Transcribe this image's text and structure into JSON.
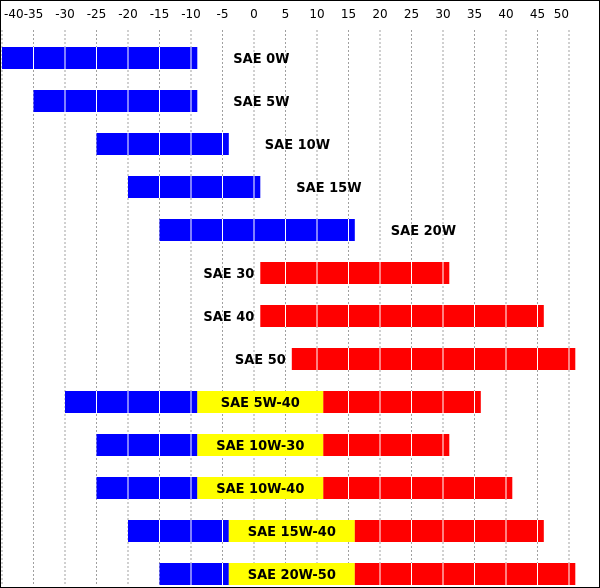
{
  "chart_data": {
    "type": "bar",
    "x_ticks": [
      -40,
      -35,
      -30,
      -25,
      -20,
      -15,
      -10,
      -5,
      0,
      5,
      10,
      15,
      20,
      25,
      30,
      35,
      40,
      45,
      50
    ],
    "xlim": [
      -40,
      50
    ],
    "grid": true,
    "colors": {
      "cold": "#0000ff",
      "mid": "#ffff00",
      "hot": "#ff0000",
      "grid": "#a0a0a0"
    },
    "rows": [
      {
        "label": "SAE 0W",
        "cold": [
          -40,
          -9
        ]
      },
      {
        "label": "SAE 5W",
        "cold": [
          -35,
          -9
        ]
      },
      {
        "label": "SAE 10W",
        "cold": [
          -25,
          -4
        ]
      },
      {
        "label": "SAE 15W",
        "cold": [
          -20,
          1
        ]
      },
      {
        "label": "SAE 20W",
        "cold": [
          -15,
          16
        ]
      },
      {
        "label": "SAE 30",
        "hot": [
          1,
          31
        ]
      },
      {
        "label": "SAE 40",
        "hot": [
          1,
          46
        ]
      },
      {
        "label": "SAE 50",
        "hot": [
          6,
          51
        ]
      },
      {
        "label": "SAE 5W-40",
        "cold": [
          -30,
          -9
        ],
        "mid": [
          -9,
          11
        ],
        "hot": [
          11,
          36
        ]
      },
      {
        "label": "SAE 10W-30",
        "cold": [
          -25,
          -9
        ],
        "mid": [
          -9,
          11
        ],
        "hot": [
          11,
          31
        ]
      },
      {
        "label": "SAE 10W-40",
        "cold": [
          -25,
          -9
        ],
        "mid": [
          -9,
          11
        ],
        "hot": [
          11,
          41
        ]
      },
      {
        "label": "SAE 15W-40",
        "cold": [
          -20,
          -4
        ],
        "mid": [
          -4,
          16
        ],
        "hot": [
          16,
          46
        ]
      },
      {
        "label": "SAE 20W-50",
        "cold": [
          -15,
          -4
        ],
        "mid": [
          -4,
          16
        ],
        "hot": [
          16,
          51
        ]
      }
    ]
  }
}
